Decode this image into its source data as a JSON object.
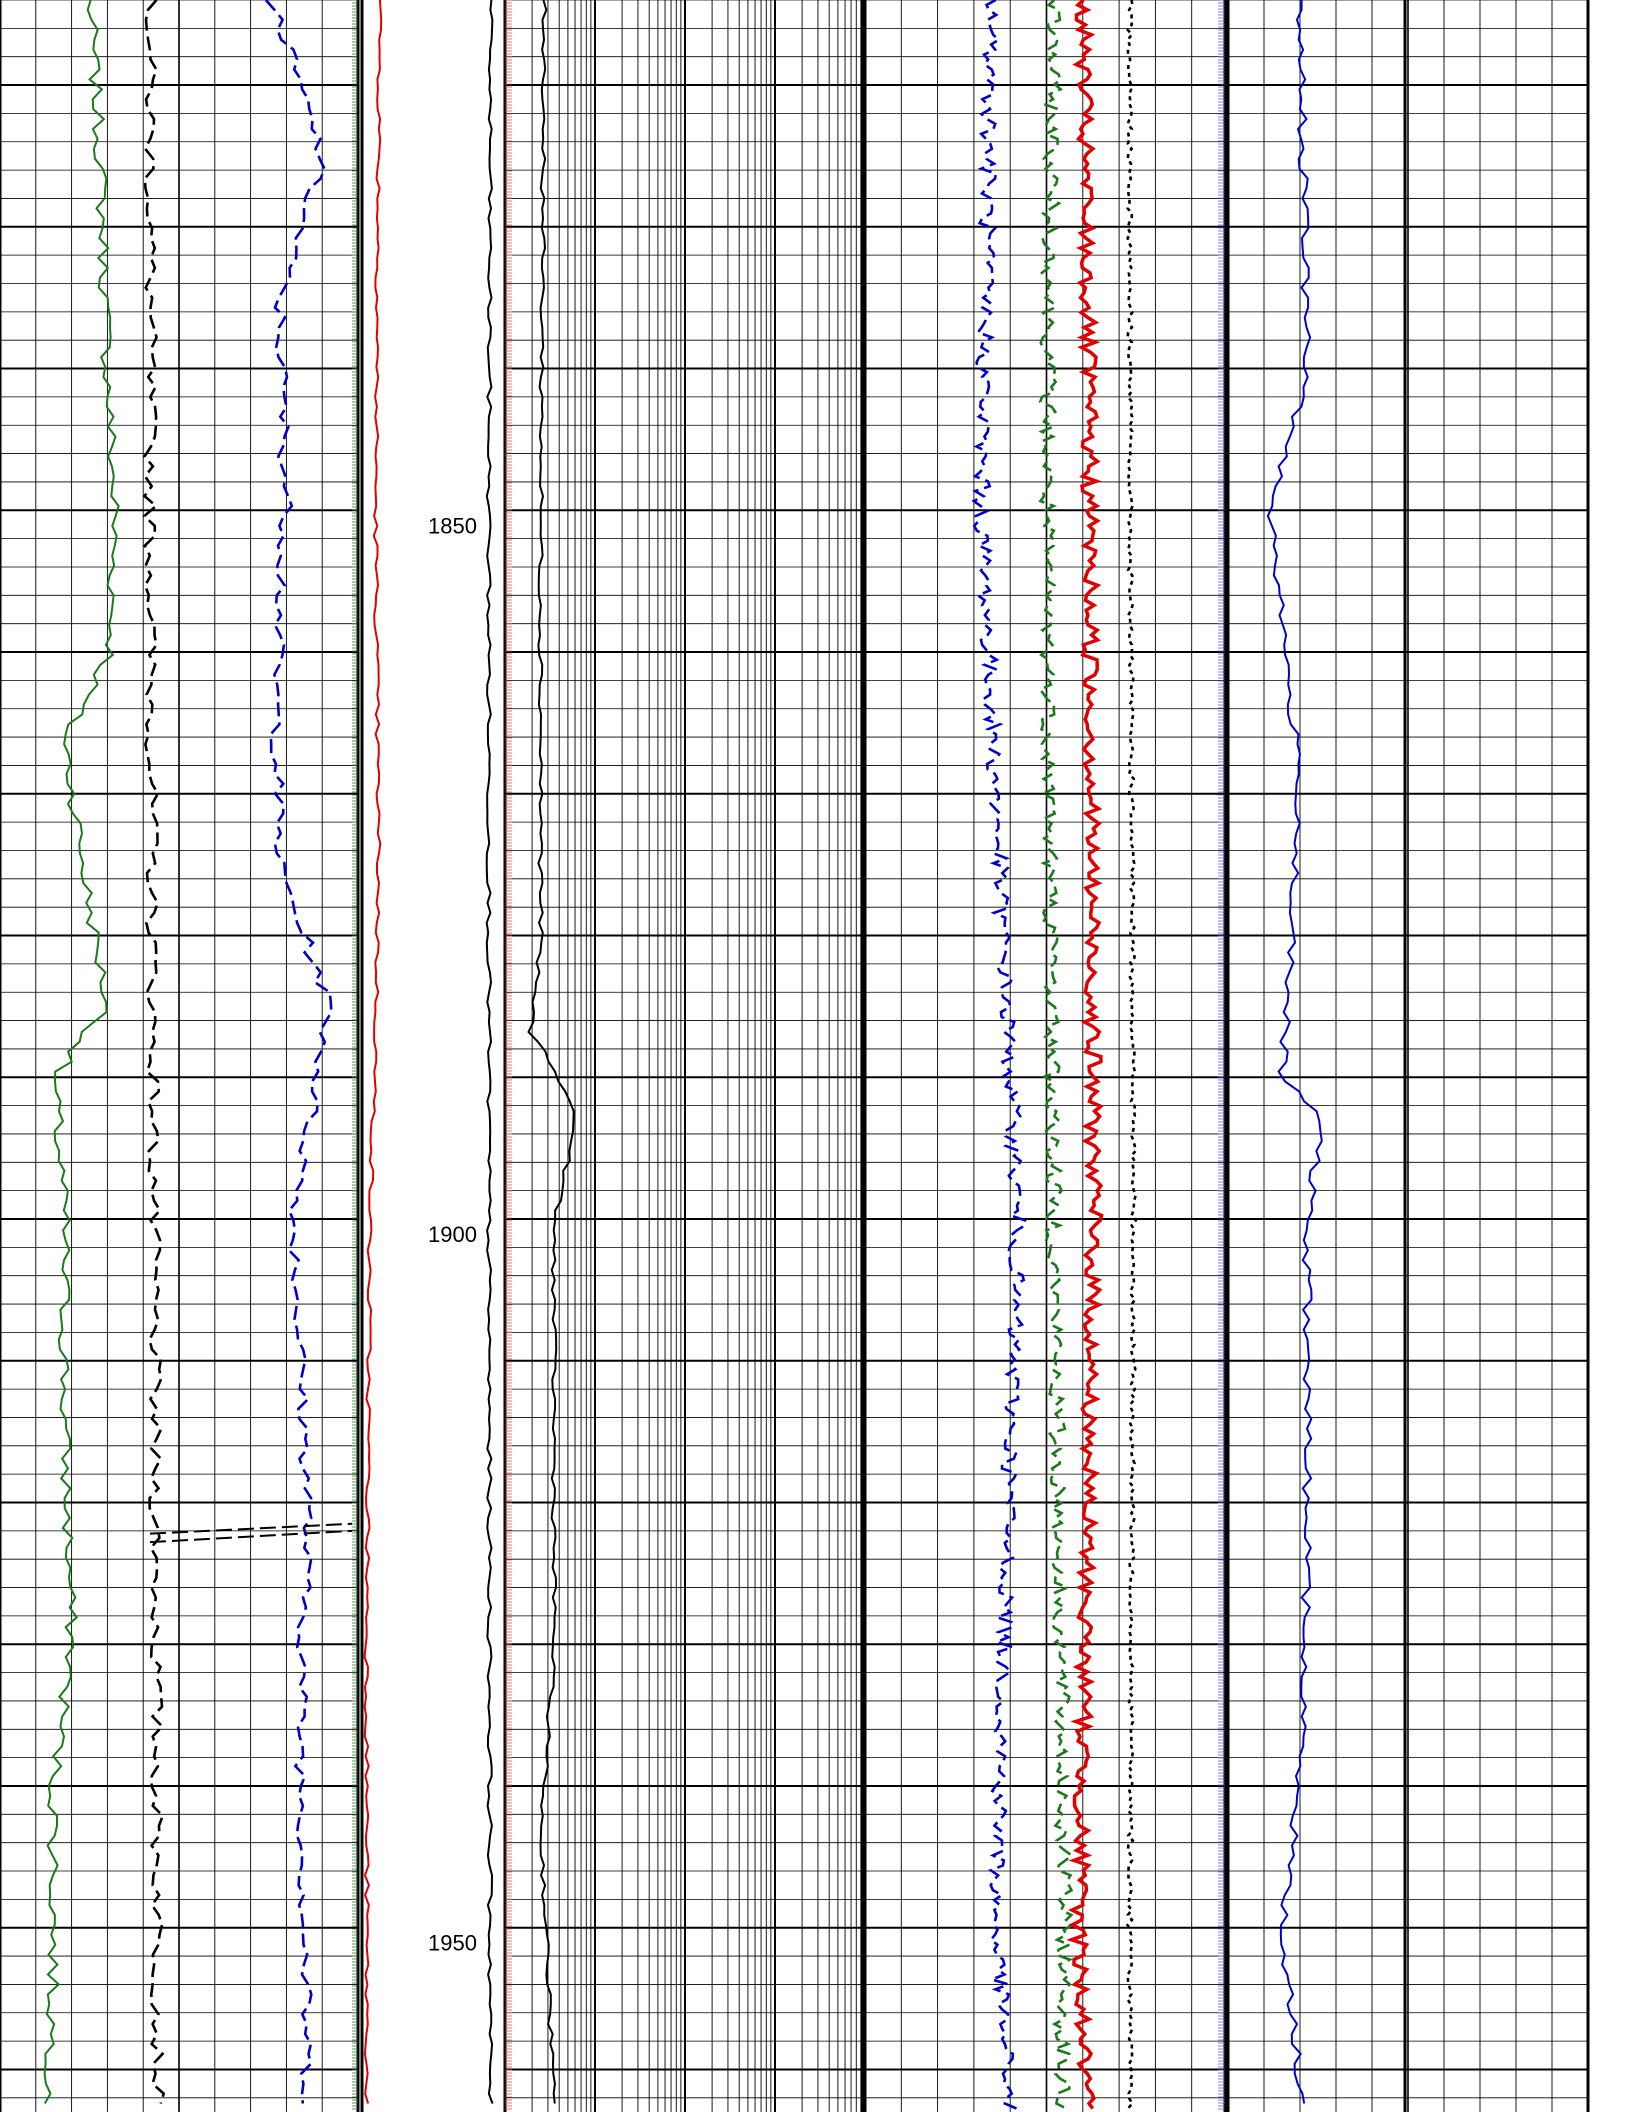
{
  "chart_data": {
    "type": "line",
    "title": "",
    "depth_axis": {
      "range": [
        1814,
        1963
      ],
      "major_ticks": [
        1850,
        1900,
        1950
      ],
      "tick_labels": [
        "1850",
        "1900",
        "1950"
      ],
      "minor_step": 10
    },
    "tracks": [
      {
        "name": "track-1",
        "grid": "linear",
        "series": [
          {
            "color": "#1a7a1a",
            "style": "solid",
            "x_range": [
              0,
              10
            ],
            "points": [
              [
                1814,
                2.5
              ],
              [
                1825,
                2.8
              ],
              [
                1840,
                3.0
              ],
              [
                1850,
                3.2
              ],
              [
                1860,
                3.1
              ],
              [
                1866,
                1.8
              ],
              [
                1878,
                2.5
              ],
              [
                1885,
                3.0
              ],
              [
                1890,
                1.5
              ],
              [
                1900,
                1.8
              ],
              [
                1915,
                1.8
              ],
              [
                1930,
                2.0
              ],
              [
                1940,
                1.5
              ],
              [
                1950,
                1.5
              ],
              [
                1963,
                1.4
              ]
            ]
          },
          {
            "color": "#000000",
            "style": "dashed",
            "x_range": [
              0,
              10
            ],
            "points": [
              [
                1814,
                4.2
              ],
              [
                1850,
                4.2
              ],
              [
                1900,
                4.3
              ],
              [
                1950,
                4.4
              ],
              [
                1963,
                4.4
              ]
            ]
          },
          {
            "color": "#0000cc",
            "style": "dashed",
            "x_range": [
              0,
              10
            ],
            "points": [
              [
                1814,
                7.6
              ],
              [
                1825,
                9.0
              ],
              [
                1835,
                7.8
              ],
              [
                1850,
                8.0
              ],
              [
                1862,
                7.7
              ],
              [
                1875,
                7.8
              ],
              [
                1885,
                9.2
              ],
              [
                1900,
                8.2
              ],
              [
                1920,
                8.6
              ],
              [
                1935,
                8.4
              ],
              [
                1950,
                8.5
              ],
              [
                1963,
                8.6
              ]
            ]
          }
        ]
      },
      {
        "name": "track-2",
        "grid": "none",
        "series": [
          {
            "color": "#e00000",
            "style": "solid",
            "x_range": [
              0,
              10
            ],
            "points": [
              [
                1814,
                1.5
              ],
              [
                1850,
                1.2
              ],
              [
                1865,
                1.3
              ],
              [
                1875,
                1.4
              ],
              [
                1888,
                1.2
              ],
              [
                1900,
                0.8
              ],
              [
                1930,
                0.6
              ],
              [
                1963,
                0.6
              ]
            ]
          },
          {
            "color": "#000000",
            "style": "solid",
            "x_range": [
              0,
              10
            ],
            "points": [
              [
                1814,
                9.0
              ],
              [
                1850,
                8.9
              ],
              [
                1900,
                8.9
              ],
              [
                1963,
                9.0
              ]
            ]
          }
        ]
      },
      {
        "name": "track-3",
        "grid": "logarithmic",
        "series": [
          {
            "color": "#000000",
            "style": "solid",
            "x_range": [
              0.2,
              2000
            ],
            "points": [
              [
                1814,
                0.55
              ],
              [
                1850,
                0.5
              ],
              [
                1880,
                0.5
              ],
              [
                1887,
                0.38
              ],
              [
                1893,
                1.2
              ],
              [
                1900,
                0.7
              ],
              [
                1930,
                0.7
              ],
              [
                1943,
                0.5
              ],
              [
                1963,
                0.7
              ]
            ]
          }
        ]
      },
      {
        "name": "track-4",
        "grid": "linear",
        "series": [
          {
            "color": "#0000cc",
            "style": "dashed",
            "x_range": [
              0,
              10
            ],
            "points": [
              [
                1814,
                3.5
              ],
              [
                1850,
                3.2
              ],
              [
                1900,
                4.2
              ],
              [
                1950,
                3.6
              ],
              [
                1963,
                4.0
              ]
            ]
          },
          {
            "color": "#1a7a1a",
            "style": "dashed",
            "x_range": [
              0,
              10
            ],
            "points": [
              [
                1814,
                5.2
              ],
              [
                1850,
                5.0
              ],
              [
                1900,
                5.2
              ],
              [
                1950,
                5.5
              ],
              [
                1963,
                5.4
              ]
            ]
          },
          {
            "color": "#e00000",
            "style": "solid",
            "x_range": [
              0,
              10
            ],
            "points": [
              [
                1814,
                6.0
              ],
              [
                1850,
                6.2
              ],
              [
                1900,
                6.3
              ],
              [
                1950,
                5.9
              ],
              [
                1963,
                6.1
              ]
            ]
          },
          {
            "color": "#000000",
            "style": "dotted",
            "x_range": [
              0,
              10
            ],
            "points": [
              [
                1814,
                7.3
              ],
              [
                1850,
                7.3
              ],
              [
                1900,
                7.4
              ],
              [
                1950,
                7.3
              ],
              [
                1963,
                7.3
              ]
            ]
          }
        ]
      },
      {
        "name": "track-5",
        "grid": "linear",
        "series": [
          {
            "color": "#0000cc",
            "style": "solid",
            "x_range": [
              0,
              10
            ],
            "points": [
              [
                1814,
                2.0
              ],
              [
                1840,
                2.2
              ],
              [
                1850,
                1.2
              ],
              [
                1870,
                2.0
              ],
              [
                1890,
                1.5
              ],
              [
                1893,
                2.6
              ],
              [
                1900,
                2.2
              ],
              [
                1924,
                2.2
              ],
              [
                1940,
                2.0
              ],
              [
                1950,
                1.5
              ],
              [
                1963,
                2.1
              ]
            ]
          }
        ]
      }
    ]
  }
}
